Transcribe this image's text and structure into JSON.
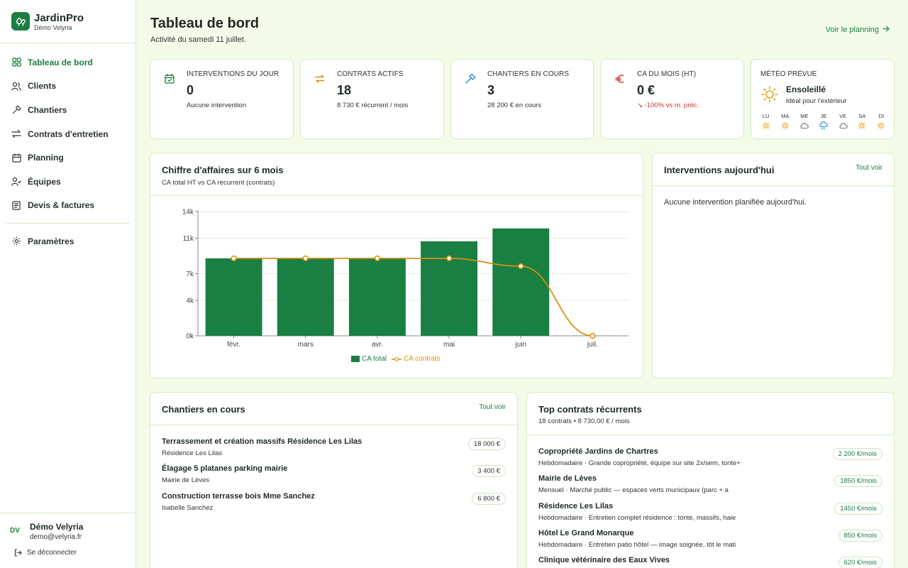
{
  "app": {
    "name": "JardinPro",
    "subtitle": "Démo Velyria"
  },
  "sidebar": {
    "items": [
      {
        "label": "Tableau de bord",
        "icon": "grid-icon"
      },
      {
        "label": "Clients",
        "icon": "users-icon"
      },
      {
        "label": "Chantiers",
        "icon": "hammer-icon"
      },
      {
        "label": "Contrats d'entretien",
        "icon": "repeat-icon"
      },
      {
        "label": "Planning",
        "icon": "calendar-icon"
      },
      {
        "label": "Équipes",
        "icon": "team-icon"
      },
      {
        "label": "Devis & factures",
        "icon": "document-icon"
      }
    ],
    "settings": {
      "label": "Paramètres",
      "icon": "gear-icon"
    }
  },
  "user": {
    "initials": "DV",
    "name": "Démo Velyria",
    "email": "demo@velyria.fr",
    "logout": "Se déconnecter"
  },
  "header": {
    "title": "Tableau de bord",
    "subtitle": "Activité du samedi 11 juillet.",
    "planning_link": "Voir le planning"
  },
  "stats": [
    {
      "label": "Interventions du jour",
      "value": "0",
      "sub": "Aucune intervention",
      "icon": "calendar-check-icon",
      "color": "#1a7f42"
    },
    {
      "label": "Contrats actifs",
      "value": "18",
      "sub": "8 730 € récurrent / mois",
      "icon": "repeat-icon",
      "color": "#d98a0a"
    },
    {
      "label": "Chantiers en cours",
      "value": "3",
      "sub": "28 200 € en cours",
      "icon": "hammer-icon",
      "color": "#1e8fd6"
    },
    {
      "label": "CA du mois (HT)",
      "value": "0 €",
      "sub": "-100% vs m. préc.",
      "icon": "euro-icon",
      "color": "#d0382f"
    }
  ],
  "meteo": {
    "label": "Météo prévue",
    "title": "Ensoleillé",
    "sub": "Idéal pour l'extérieur",
    "days": [
      {
        "label": "LU",
        "icon": "sun-icon"
      },
      {
        "label": "MA",
        "icon": "sun-icon"
      },
      {
        "label": "ME",
        "icon": "cloud-icon"
      },
      {
        "label": "JE",
        "icon": "rain-icon"
      },
      {
        "label": "VE",
        "icon": "cloud-icon"
      },
      {
        "label": "SA",
        "icon": "sun-icon"
      },
      {
        "label": "DI",
        "icon": "sun-icon"
      }
    ]
  },
  "revenue_panel": {
    "title": "Chiffre d'affaires sur 6 mois",
    "subtitle": "CA total HT vs CA récurrent (contrats)"
  },
  "chart_data": {
    "type": "bar",
    "categories": [
      "févr.",
      "mars",
      "avr.",
      "mai",
      "juin",
      "juil."
    ],
    "series": [
      {
        "name": "CA total",
        "type": "bar",
        "color": "#1a7f42",
        "values": [
          8730,
          8730,
          8730,
          10650,
          12100,
          0
        ]
      },
      {
        "name": "CA contrats",
        "type": "line",
        "color": "#d4920f",
        "values": [
          8730,
          8730,
          8730,
          8730,
          7850,
          0
        ]
      }
    ],
    "ylim": [
      0,
      14000
    ],
    "yticks": [
      0,
      4000,
      7000,
      11000,
      14000
    ],
    "ytick_labels": [
      "0k",
      "4k",
      "7k",
      "11k",
      "14k"
    ],
    "grid": true,
    "legend": "bottom"
  },
  "interventions_panel": {
    "title": "Interventions aujourd'hui",
    "link": "Tout voir",
    "empty": "Aucune intervention planifiée aujourd'hui."
  },
  "chantiers_panel": {
    "title": "Chantiers en cours",
    "link": "Tout voir",
    "rows": [
      {
        "title": "Terrassement et création massifs Résidence Les Lilas",
        "client": "Résidence Les Lilas",
        "amount": "18 000 €"
      },
      {
        "title": "Élagage 5 platanes parking mairie",
        "client": "Mairie de Lèves",
        "amount": "3 400 €"
      },
      {
        "title": "Construction terrasse bois Mme Sanchez",
        "client": "Isabelle Sanchez",
        "amount": "6 800 €"
      }
    ]
  },
  "contracts_panel": {
    "title": "Top contrats récurrents",
    "subtitle": "18 contrats • 8 730,00 € / mois",
    "rows": [
      {
        "title": "Copropriété Jardins de Chartres",
        "desc": "Hebdomadaire · Grande copropriété, équipe sur site 2x/sem, tonte+",
        "amount": "2 200 €/mois"
      },
      {
        "title": "Mairie de Lèves",
        "desc": "Mensuel · Marché public — espaces verts municipaux (parc + a",
        "amount": "1850 €/mois"
      },
      {
        "title": "Résidence Les Lilas",
        "desc": "Hebdomadaire · Entretien complet résidence : tonte, massifs, haie",
        "amount": "1450 €/mois"
      },
      {
        "title": "Hôtel Le Grand Monarque",
        "desc": "Hebdomadaire · Entretien patio hôtel — image soignée, tôt le mati",
        "amount": "850 €/mois"
      },
      {
        "title": "Clinique vétérinaire des Eaux Vives",
        "desc": "",
        "amount": "620 €/mois"
      }
    ]
  }
}
